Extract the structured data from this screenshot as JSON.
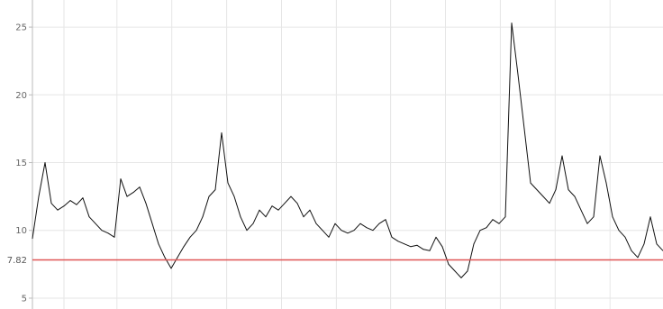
{
  "chart_data": {
    "type": "line",
    "title": "",
    "xlabel": "",
    "ylabel": "",
    "ylim": [
      4.2,
      27
    ],
    "grid": true,
    "y_ticks": [
      5,
      10,
      15,
      20,
      25
    ],
    "x_ticks": [
      0.05,
      0.134,
      0.221,
      0.308,
      0.395,
      0.482,
      0.568,
      0.655,
      0.742,
      0.829,
      0.916
    ],
    "line_color": "#111111",
    "reference_line": {
      "value": 7.82,
      "label": "7.82",
      "color": "#e05555"
    },
    "series": [
      {
        "x": [
          0,
          0.01,
          0.02,
          0.03,
          0.04,
          0.05,
          0.06,
          0.07,
          0.08,
          0.09,
          0.1,
          0.11,
          0.12,
          0.13,
          0.14,
          0.15,
          0.16,
          0.17,
          0.18,
          0.19,
          0.2,
          0.21,
          0.22,
          0.23,
          0.24,
          0.25,
          0.26,
          0.27,
          0.28,
          0.29,
          0.3,
          0.31,
          0.32,
          0.33,
          0.34,
          0.35,
          0.36,
          0.37,
          0.38,
          0.39,
          0.4,
          0.41,
          0.42,
          0.43,
          0.44,
          0.45,
          0.46,
          0.47,
          0.48,
          0.49,
          0.5,
          0.51,
          0.52,
          0.53,
          0.54,
          0.55,
          0.56,
          0.57,
          0.58,
          0.59,
          0.6,
          0.61,
          0.62,
          0.63,
          0.64,
          0.65,
          0.66,
          0.67,
          0.68,
          0.69,
          0.7,
          0.71,
          0.72,
          0.73,
          0.74,
          0.75,
          0.76,
          0.77,
          0.78,
          0.79,
          0.8,
          0.81,
          0.82,
          0.83,
          0.84,
          0.85,
          0.86,
          0.87,
          0.88,
          0.89,
          0.9,
          0.91,
          0.92,
          0.93,
          0.94,
          0.95,
          0.96,
          0.97,
          0.98,
          0.99,
          1
        ],
        "values": [
          9.4,
          12.5,
          15.0,
          12.0,
          11.5,
          11.8,
          12.2,
          11.9,
          12.4,
          11.0,
          10.5,
          10.0,
          9.8,
          9.5,
          13.8,
          12.5,
          12.8,
          13.2,
          12.0,
          10.5,
          9.0,
          8.0,
          7.2,
          8.0,
          8.8,
          9.5,
          10.0,
          11.0,
          12.5,
          13.0,
          17.2,
          13.5,
          12.5,
          11.0,
          10.0,
          10.5,
          11.5,
          11.0,
          11.8,
          11.5,
          12.0,
          12.5,
          12.0,
          11.0,
          11.5,
          10.5,
          10.0,
          9.5,
          10.5,
          10.0,
          9.8,
          10.0,
          10.5,
          10.2,
          10.0,
          10.5,
          10.8,
          9.5,
          9.2,
          9.0,
          8.8,
          8.9,
          8.6,
          8.5,
          9.5,
          8.8,
          7.5,
          7.0,
          6.5,
          7.0,
          9.0,
          10.0,
          10.2,
          10.8,
          10.5,
          11.0,
          25.3,
          21.5,
          17.5,
          13.5,
          13.0,
          12.5,
          12.0,
          13.0,
          15.5,
          13.0,
          12.5,
          11.5,
          10.5,
          11.0,
          15.5,
          13.5,
          11.0,
          10.0,
          9.5,
          8.5,
          8.0,
          9.0,
          11.0,
          9.0,
          8.5
        ]
      }
    ]
  }
}
